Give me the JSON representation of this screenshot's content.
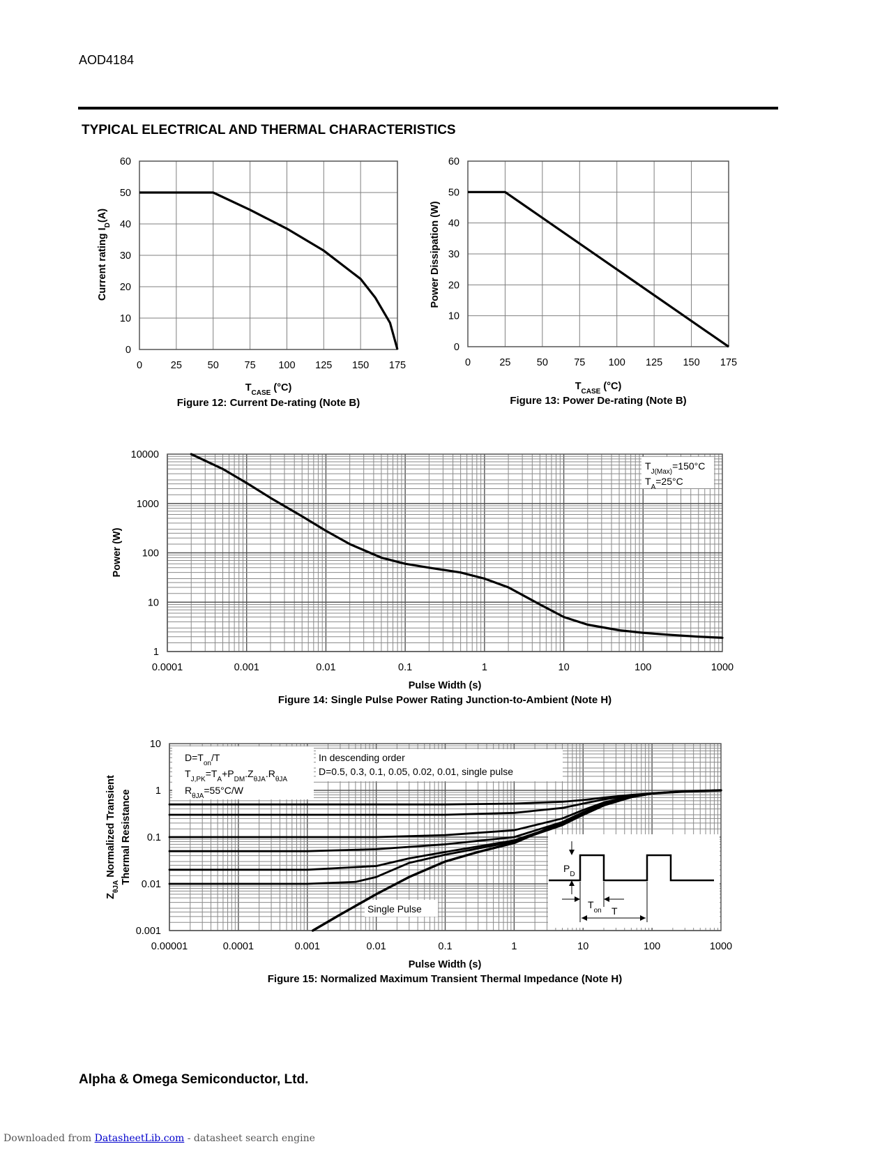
{
  "header": {
    "part_number": "AOD4184",
    "section_title": "TYPICAL ELECTRICAL AND THERMAL CHARACTERISTICS"
  },
  "footer": {
    "company": "Alpha & Omega Semiconductor, Ltd.",
    "download_prefix": "Downloaded from ",
    "download_link": "DatasheetLib.com",
    "download_suffix": " - datasheet search engine"
  },
  "chart_data": [
    {
      "id": "fig12",
      "type": "line",
      "title": "Figure 12: Current De-rating (Note B)",
      "xlabel": "T_CASE (°C)",
      "ylabel": "Current rating I_D(A)",
      "xlim": [
        0,
        175
      ],
      "ylim": [
        0,
        60
      ],
      "xticks": [
        0,
        25,
        50,
        75,
        100,
        125,
        150,
        175
      ],
      "yticks": [
        0,
        10,
        20,
        30,
        40,
        50,
        60
      ],
      "series": [
        {
          "name": "I_D",
          "x": [
            0,
            50,
            75,
            100,
            125,
            150,
            160,
            170,
            175
          ],
          "y": [
            50,
            50,
            44.5,
            38.5,
            31.5,
            22.5,
            16.5,
            8.5,
            0
          ]
        }
      ]
    },
    {
      "id": "fig13",
      "type": "line",
      "title": "Figure 13: Power De-rating (Note B)",
      "xlabel": "T_CASE (°C)",
      "ylabel": "Power Dissipation (W)",
      "xlim": [
        0,
        175
      ],
      "ylim": [
        0,
        60
      ],
      "xticks": [
        0,
        25,
        50,
        75,
        100,
        125,
        150,
        175
      ],
      "yticks": [
        0,
        10,
        20,
        30,
        40,
        50,
        60
      ],
      "series": [
        {
          "name": "P_D",
          "x": [
            0,
            25,
            175
          ],
          "y": [
            50,
            50,
            0
          ]
        }
      ]
    },
    {
      "id": "fig14",
      "type": "line",
      "title": "Figure 14: Single Pulse Power Rating Junction-to-Ambient (Note H)",
      "xlabel": "Pulse Width (s)",
      "ylabel": "Power (W)",
      "xscale": "log",
      "yscale": "log",
      "xlim": [
        0.0001,
        1000
      ],
      "ylim": [
        1,
        10000
      ],
      "xticks": [
        0.0001,
        0.001,
        0.01,
        0.1,
        1,
        10,
        100,
        1000
      ],
      "xticklabels": [
        "0.0001",
        "0.001",
        "0.01",
        "0.1",
        "1",
        "10",
        "100",
        "1000"
      ],
      "yticks": [
        1,
        10,
        100,
        1000,
        10000
      ],
      "yticklabels": [
        "1",
        "10",
        "100",
        "1000",
        "10000"
      ],
      "annotation": {
        "line1": "T",
        "line1_sub": "J(Max)",
        "line1_rest": "=150°C",
        "line2": "T",
        "line2_sub": "A",
        "line2_rest": "=25°C"
      },
      "series": [
        {
          "name": "single pulse",
          "x": [
            0.0002,
            0.0005,
            0.001,
            0.002,
            0.005,
            0.01,
            0.02,
            0.05,
            0.1,
            0.2,
            0.5,
            1,
            2,
            5,
            10,
            20,
            50,
            100,
            200,
            500,
            1000
          ],
          "y": [
            10000,
            5000,
            2600,
            1300,
            550,
            280,
            150,
            80,
            60,
            50,
            40,
            30,
            20,
            9,
            5,
            3.5,
            2.7,
            2.4,
            2.2,
            2.0,
            1.9
          ]
        }
      ]
    },
    {
      "id": "fig15",
      "type": "line",
      "title": "Figure 15: Normalized Maximum Transient Thermal Impedance (Note H)",
      "xlabel": "Pulse Width (s)",
      "ylabel": "Z_θJA Normalized Transient Thermal Resistance",
      "xscale": "log",
      "yscale": "log",
      "xlim": [
        1e-05,
        1000
      ],
      "ylim": [
        0.001,
        10
      ],
      "xticks": [
        1e-05,
        0.0001,
        0.001,
        0.01,
        0.1,
        1,
        10,
        100,
        1000
      ],
      "xticklabels": [
        "0.00001",
        "0.0001",
        "0.001",
        "0.01",
        "0.1",
        "1",
        "10",
        "100",
        "1000"
      ],
      "yticks": [
        0.001,
        0.01,
        0.1,
        1,
        10
      ],
      "yticklabels": [
        "0.001",
        "0.01",
        "0.1",
        "1",
        "10"
      ],
      "legend_left": {
        "d": "D=T",
        "d_sub": "on",
        "d_rest": "/T",
        "tj": "T",
        "tj_sub1": "J,PK",
        "tj_mid1": "=T",
        "tj_sub2": "A",
        "tj_mid2": "+P",
        "tj_sub3": "DM",
        "tj_mid3": ".Z",
        "tj_sub4": "θJA",
        "tj_mid4": ".R",
        "tj_sub5": "θJA",
        "r": "R",
        "r_sub": "θJA",
        "r_rest": "=55°C/W"
      },
      "legend_right": {
        "line1": "In descending order",
        "line2": "D=0.5, 0.3, 0.1, 0.05, 0.02, 0.01, single pulse"
      },
      "single_pulse_label": "Single Pulse",
      "inset": {
        "pd": "P",
        "pd_sub": "D",
        "ton": "T",
        "ton_sub": "on",
        "t": "T"
      },
      "series": [
        {
          "name": "D=0.5",
          "x": [
            1e-05,
            0.1,
            1,
            5,
            10,
            20,
            50,
            100,
            300,
            1000
          ],
          "y": [
            0.5,
            0.5,
            0.52,
            0.57,
            0.62,
            0.7,
            0.8,
            0.86,
            0.95,
            1.0
          ]
        },
        {
          "name": "D=0.3",
          "x": [
            1e-05,
            0.1,
            1,
            5,
            10,
            20,
            50,
            100,
            300,
            1000
          ],
          "y": [
            0.3,
            0.3,
            0.33,
            0.42,
            0.52,
            0.64,
            0.78,
            0.86,
            0.95,
            1.0
          ]
        },
        {
          "name": "D=0.1",
          "x": [
            1e-05,
            0.01,
            0.1,
            1,
            5,
            10,
            20,
            50,
            100,
            300,
            1000
          ],
          "y": [
            0.1,
            0.1,
            0.11,
            0.14,
            0.25,
            0.38,
            0.55,
            0.76,
            0.86,
            0.95,
            1.0
          ]
        },
        {
          "name": "D=0.05",
          "x": [
            1e-05,
            0.001,
            0.01,
            0.1,
            1,
            5,
            10,
            20,
            50,
            100,
            300,
            1000
          ],
          "y": [
            0.05,
            0.05,
            0.055,
            0.07,
            0.1,
            0.21,
            0.34,
            0.52,
            0.74,
            0.86,
            0.95,
            1.0
          ]
        },
        {
          "name": "D=0.02",
          "x": [
            1e-05,
            0.001,
            0.01,
            0.03,
            0.1,
            1,
            5,
            10,
            20,
            50,
            100,
            300,
            1000
          ],
          "y": [
            0.02,
            0.02,
            0.024,
            0.035,
            0.048,
            0.085,
            0.19,
            0.32,
            0.5,
            0.73,
            0.86,
            0.95,
            1.0
          ]
        },
        {
          "name": "D=0.01",
          "x": [
            1e-05,
            0.001,
            0.005,
            0.01,
            0.03,
            0.1,
            1,
            5,
            10,
            20,
            50,
            100,
            300,
            1000
          ],
          "y": [
            0.01,
            0.01,
            0.011,
            0.014,
            0.028,
            0.042,
            0.08,
            0.18,
            0.3,
            0.49,
            0.72,
            0.86,
            0.95,
            1.0
          ]
        },
        {
          "name": "single pulse",
          "x": [
            0.0012,
            0.003,
            0.01,
            0.03,
            0.1,
            0.3,
            1,
            3,
            10,
            20,
            50,
            100,
            300,
            1000
          ],
          "y": [
            0.001,
            0.0022,
            0.006,
            0.014,
            0.03,
            0.048,
            0.075,
            0.15,
            0.3,
            0.48,
            0.72,
            0.86,
            0.95,
            1.0
          ]
        }
      ]
    }
  ]
}
